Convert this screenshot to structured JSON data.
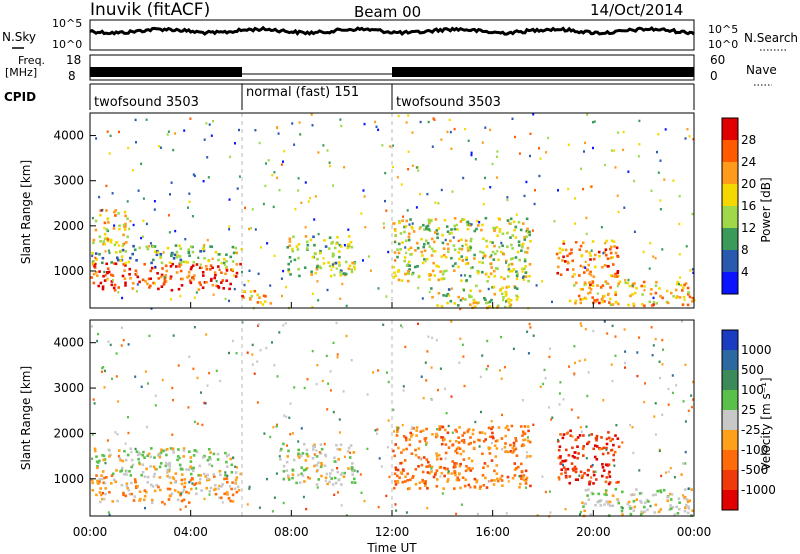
{
  "header": {
    "station": "Inuvik (fitACF)",
    "beam": "Beam 00",
    "date": "14/Oct/2014"
  },
  "noise_panel": {
    "left_label": "N.Sky",
    "right_label": "N.Search",
    "left_ticks": [
      "10^5",
      "10^0"
    ],
    "right_ticks": [
      "10^5",
      "10^0"
    ]
  },
  "freq_panel": {
    "left_label_1": "Freq.",
    "left_label_2": "[MHz]",
    "right_label": "Nave",
    "left_ticks": [
      "18",
      "8"
    ],
    "right_ticks": [
      "60",
      "0"
    ]
  },
  "cpid_panel": {
    "label": "CPID",
    "segments": [
      {
        "name": "twofsound 3503",
        "start_h": 0,
        "end_h": 6
      },
      {
        "name": "normal (fast) 151",
        "start_h": 6,
        "end_h": 12
      },
      {
        "name": "twofsound 3503",
        "start_h": 12,
        "end_h": 24
      }
    ]
  },
  "power_colorbar": {
    "title": "Power [dB]",
    "ticks": [
      "28",
      "24",
      "20",
      "16",
      "12",
      "8",
      "4"
    ],
    "colors": [
      "#e00000",
      "#ff5a00",
      "#ff9a1a",
      "#f5d800",
      "#9fd94a",
      "#3a9a5a",
      "#2a5ab0",
      "#0a14ff"
    ]
  },
  "velocity_colorbar": {
    "title": "Velocity [m s⁻¹]",
    "ticks": [
      "1000",
      "500",
      "100",
      "25",
      "-25",
      "-100",
      "-500",
      "-1000"
    ],
    "colors": [
      "#1a3cc0",
      "#2a6aa0",
      "#3a8a5a",
      "#5ac04a",
      "#c8c8c8",
      "#ffa01a",
      "#ff6a0a",
      "#f03a0a",
      "#e00000"
    ]
  },
  "x_axis": {
    "label": "Time UT",
    "ticks": [
      "00:00",
      "04:00",
      "08:00",
      "12:00",
      "16:00",
      "20:00",
      "00:00"
    ]
  },
  "chart_data": [
    {
      "type": "heatmap",
      "title": "Power [dB]",
      "xlabel": "Time UT",
      "ylabel": "Slant Range [km]",
      "xlim_hours": [
        0,
        24
      ],
      "ylim": [
        180,
        4500
      ],
      "y_ticks": [
        1000,
        2000,
        3000,
        4000
      ],
      "clim": [
        0,
        30
      ],
      "color_ticks": [
        4,
        8,
        12,
        16,
        20,
        24,
        28
      ],
      "mode_boundaries_h": [
        6,
        12
      ],
      "regions": [
        {
          "t0": 0.0,
          "t1": 6.0,
          "r0": 600,
          "r1": 1200,
          "value": 26
        },
        {
          "t0": 0.0,
          "t1": 6.0,
          "r0": 1200,
          "r1": 1600,
          "value": 12
        },
        {
          "t0": 0.0,
          "t1": 1.5,
          "r0": 1600,
          "r1": 2400,
          "value": 18
        },
        {
          "t0": 6.0,
          "t1": 7.2,
          "r0": 250,
          "r1": 600,
          "value": 20
        },
        {
          "t0": 7.8,
          "t1": 10.5,
          "r0": 900,
          "r1": 1800,
          "value": 14
        },
        {
          "t0": 12.0,
          "t1": 17.5,
          "r0": 800,
          "r1": 2200,
          "value": 15
        },
        {
          "t0": 13.5,
          "t1": 17.0,
          "r0": 200,
          "r1": 700,
          "value": 14
        },
        {
          "t0": 18.5,
          "t1": 21.0,
          "r0": 900,
          "r1": 1700,
          "value": 22
        },
        {
          "t0": 19.0,
          "t1": 24.0,
          "r0": 250,
          "r1": 800,
          "value": 20
        }
      ]
    },
    {
      "type": "heatmap",
      "title": "Velocity [m s⁻¹]",
      "xlabel": "Time UT",
      "ylabel": "Slant Range [km]",
      "xlim_hours": [
        0,
        24
      ],
      "ylim": [
        180,
        4500
      ],
      "y_ticks": [
        1000,
        2000,
        3000,
        4000
      ],
      "clim": [
        -1000,
        1000
      ],
      "color_ticks": [
        1000,
        500,
        100,
        25,
        -25,
        -100,
        -500,
        -1000
      ],
      "mode_boundaries_h": [
        6,
        12
      ],
      "regions": [
        {
          "t0": 0.0,
          "t1": 6.0,
          "r0": 500,
          "r1": 1100,
          "value": -250
        },
        {
          "t0": 0.0,
          "t1": 6.0,
          "r0": 1100,
          "r1": 1700,
          "value": 60
        },
        {
          "t0": 7.5,
          "t1": 10.5,
          "r0": 900,
          "r1": 1800,
          "value": 60
        },
        {
          "t0": 12.0,
          "t1": 17.5,
          "r0": 800,
          "r1": 2200,
          "value": -400
        },
        {
          "t0": 18.5,
          "t1": 21.0,
          "r0": 900,
          "r1": 2100,
          "value": -700
        },
        {
          "t0": 19.5,
          "t1": 24.0,
          "r0": 200,
          "r1": 800,
          "value": 50
        }
      ]
    }
  ]
}
